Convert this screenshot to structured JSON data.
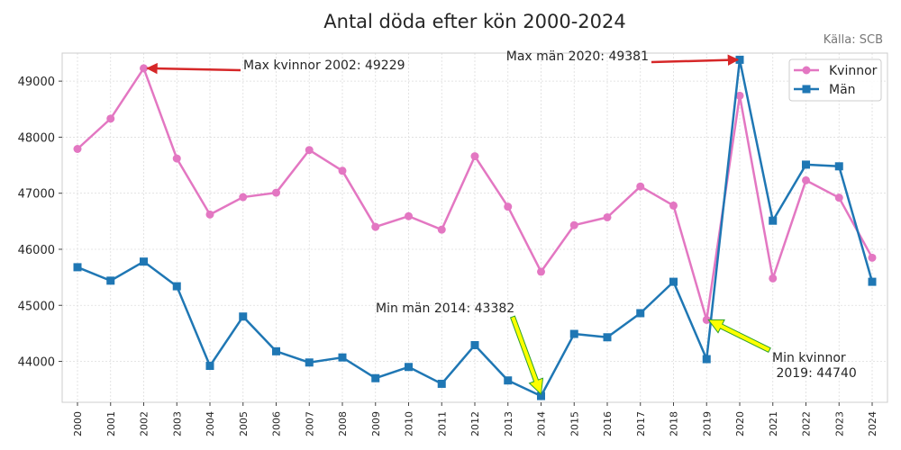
{
  "chart_data": {
    "type": "line",
    "title": "Antal döda efter kön 2000-2024",
    "source": "Källa: SCB",
    "xlabel": "",
    "ylabel": "",
    "x": [
      2000,
      2001,
      2002,
      2003,
      2004,
      2005,
      2006,
      2007,
      2008,
      2009,
      2010,
      2011,
      2012,
      2013,
      2014,
      2015,
      2016,
      2017,
      2018,
      2019,
      2020,
      2021,
      2022,
      2023,
      2024
    ],
    "ylim": [
      43270,
      49500
    ],
    "yticks": [
      44000,
      45000,
      46000,
      47000,
      48000,
      49000
    ],
    "grid": true,
    "legend": "top-right",
    "series": [
      {
        "name": "Kvinnor",
        "color": "#e377c2",
        "marker": "circle",
        "values": [
          47790,
          48330,
          49229,
          47620,
          46620,
          46930,
          47010,
          47770,
          47400,
          46400,
          46590,
          46350,
          47660,
          46760,
          45600,
          46430,
          46570,
          47120,
          46780,
          44740,
          48740,
          45480,
          47230,
          46920,
          45850
        ]
      },
      {
        "name": "Män",
        "color": "#1f77b4",
        "marker": "square",
        "values": [
          45680,
          45440,
          45780,
          45340,
          43920,
          44800,
          44180,
          43980,
          44070,
          43700,
          43900,
          43600,
          44290,
          43660,
          43382,
          44490,
          44430,
          44860,
          45420,
          44040,
          49381,
          46510,
          47510,
          47480,
          45420
        ]
      }
    ],
    "annotations": [
      {
        "id": "max-kvinnor",
        "text": "Max kvinnor 2002: 49229",
        "x": 2002,
        "y": 49229,
        "arrow": "red"
      },
      {
        "id": "max-man",
        "text": "Max män 2020: 49381",
        "x": 2020,
        "y": 49381,
        "arrow": "red"
      },
      {
        "id": "min-man",
        "text": "Min män 2014: 43382",
        "x": 2014,
        "y": 43382,
        "arrow": "yellow"
      },
      {
        "id": "min-kvinnor",
        "text": "Min kvinnor\n 2019: 44740",
        "x": 2019,
        "y": 44740,
        "arrow": "yellow"
      }
    ]
  }
}
